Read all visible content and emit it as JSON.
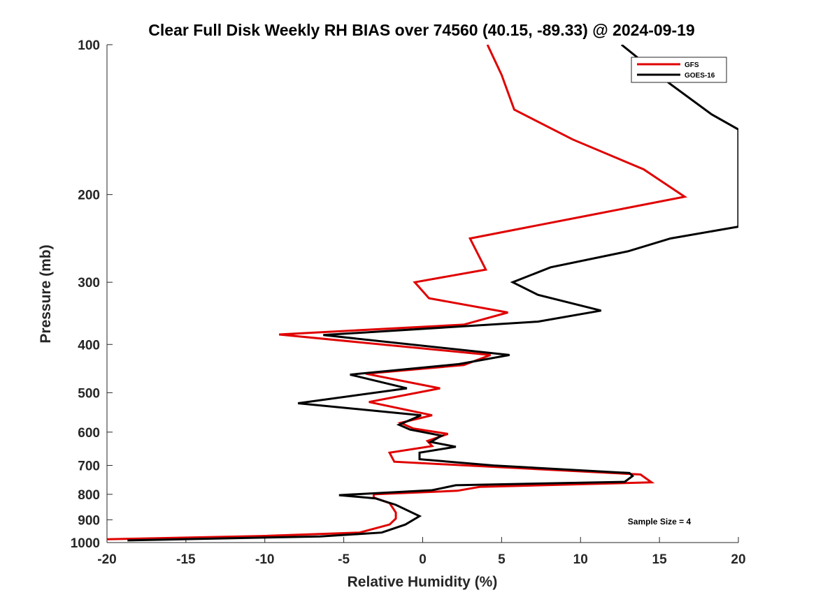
{
  "chart_data": {
    "type": "line",
    "title": "Clear Full Disk Weekly RH BIAS over 74560 (40.15, -89.33) @ 2024-09-19",
    "xlabel": "Relative Humidity (%)",
    "ylabel": "Pressure (mb)",
    "xlim": [
      -20,
      20
    ],
    "ylim": [
      100,
      1000
    ],
    "yscale": "log",
    "y_reversed": true,
    "xticks": [
      -20,
      -15,
      -10,
      -5,
      0,
      5,
      10,
      15,
      20
    ],
    "yticks": [
      100,
      200,
      300,
      400,
      500,
      600,
      700,
      800,
      900,
      1000
    ],
    "legend_position": "top-right",
    "annotation": "Sample Size = 4",
    "series": [
      {
        "name": "GFS",
        "color": "#e00000",
        "points": [
          [
            4.1,
            100
          ],
          [
            5,
            115
          ],
          [
            5.8,
            135
          ],
          [
            9.5,
            155
          ],
          [
            14,
            178
          ],
          [
            16.6,
            202
          ],
          [
            10.6,
            220
          ],
          [
            3,
            245
          ],
          [
            4,
            283
          ],
          [
            -0.5,
            300
          ],
          [
            0.4,
            323
          ],
          [
            5.4,
            345
          ],
          [
            2.6,
            365
          ],
          [
            -9.1,
            382
          ],
          [
            4.3,
            420
          ],
          [
            2.6,
            440
          ],
          [
            -3.6,
            458
          ],
          [
            1.1,
            490
          ],
          [
            -3.4,
            522
          ],
          [
            0.6,
            555
          ],
          [
            -1.4,
            575
          ],
          [
            -0.6,
            590
          ],
          [
            1.6,
            605
          ],
          [
            0.3,
            625
          ],
          [
            0.6,
            640
          ],
          [
            -2.1,
            660
          ],
          [
            -1.8,
            688
          ],
          [
            13.8,
            730
          ],
          [
            14.5,
            757
          ],
          [
            3.6,
            773
          ],
          [
            2.2,
            787
          ],
          [
            -3.1,
            800
          ],
          [
            -3.1,
            812
          ],
          [
            -2.1,
            833
          ],
          [
            -1.7,
            870
          ],
          [
            -1.7,
            895
          ],
          [
            -2.1,
            920
          ],
          [
            -4,
            955
          ],
          [
            -10.2,
            970
          ],
          [
            -20,
            985
          ]
        ]
      },
      {
        "name": "GOES-16",
        "color": "#000000",
        "points": [
          [
            12.6,
            100
          ],
          [
            15.7,
            120
          ],
          [
            18.3,
            138
          ],
          [
            20,
            148
          ],
          [
            20,
            232
          ],
          [
            15.7,
            245
          ],
          [
            13,
            260
          ],
          [
            8.1,
            280
          ],
          [
            5.7,
            300
          ],
          [
            7.3,
            318
          ],
          [
            11.3,
            342
          ],
          [
            7.3,
            360
          ],
          [
            -6.3,
            383
          ],
          [
            5.5,
            420
          ],
          [
            2.3,
            438
          ],
          [
            -4.6,
            460
          ],
          [
            -1,
            490
          ],
          [
            -7.9,
            525
          ],
          [
            -0.1,
            555
          ],
          [
            -1.5,
            580
          ],
          [
            -0.8,
            593
          ],
          [
            1.2,
            610
          ],
          [
            0.5,
            628
          ],
          [
            2.1,
            642
          ],
          [
            -0.2,
            660
          ],
          [
            -0.2,
            680
          ],
          [
            4.5,
            700
          ],
          [
            13.1,
            725
          ],
          [
            13.3,
            735
          ],
          [
            12.8,
            755
          ],
          [
            2.1,
            767
          ],
          [
            0.6,
            785
          ],
          [
            -5.3,
            803
          ],
          [
            -3,
            815
          ],
          [
            -1.7,
            840
          ],
          [
            -0.2,
            885
          ],
          [
            -1.1,
            920
          ],
          [
            -2.6,
            955
          ],
          [
            -6.5,
            972
          ],
          [
            -18.7,
            990
          ]
        ]
      }
    ]
  }
}
